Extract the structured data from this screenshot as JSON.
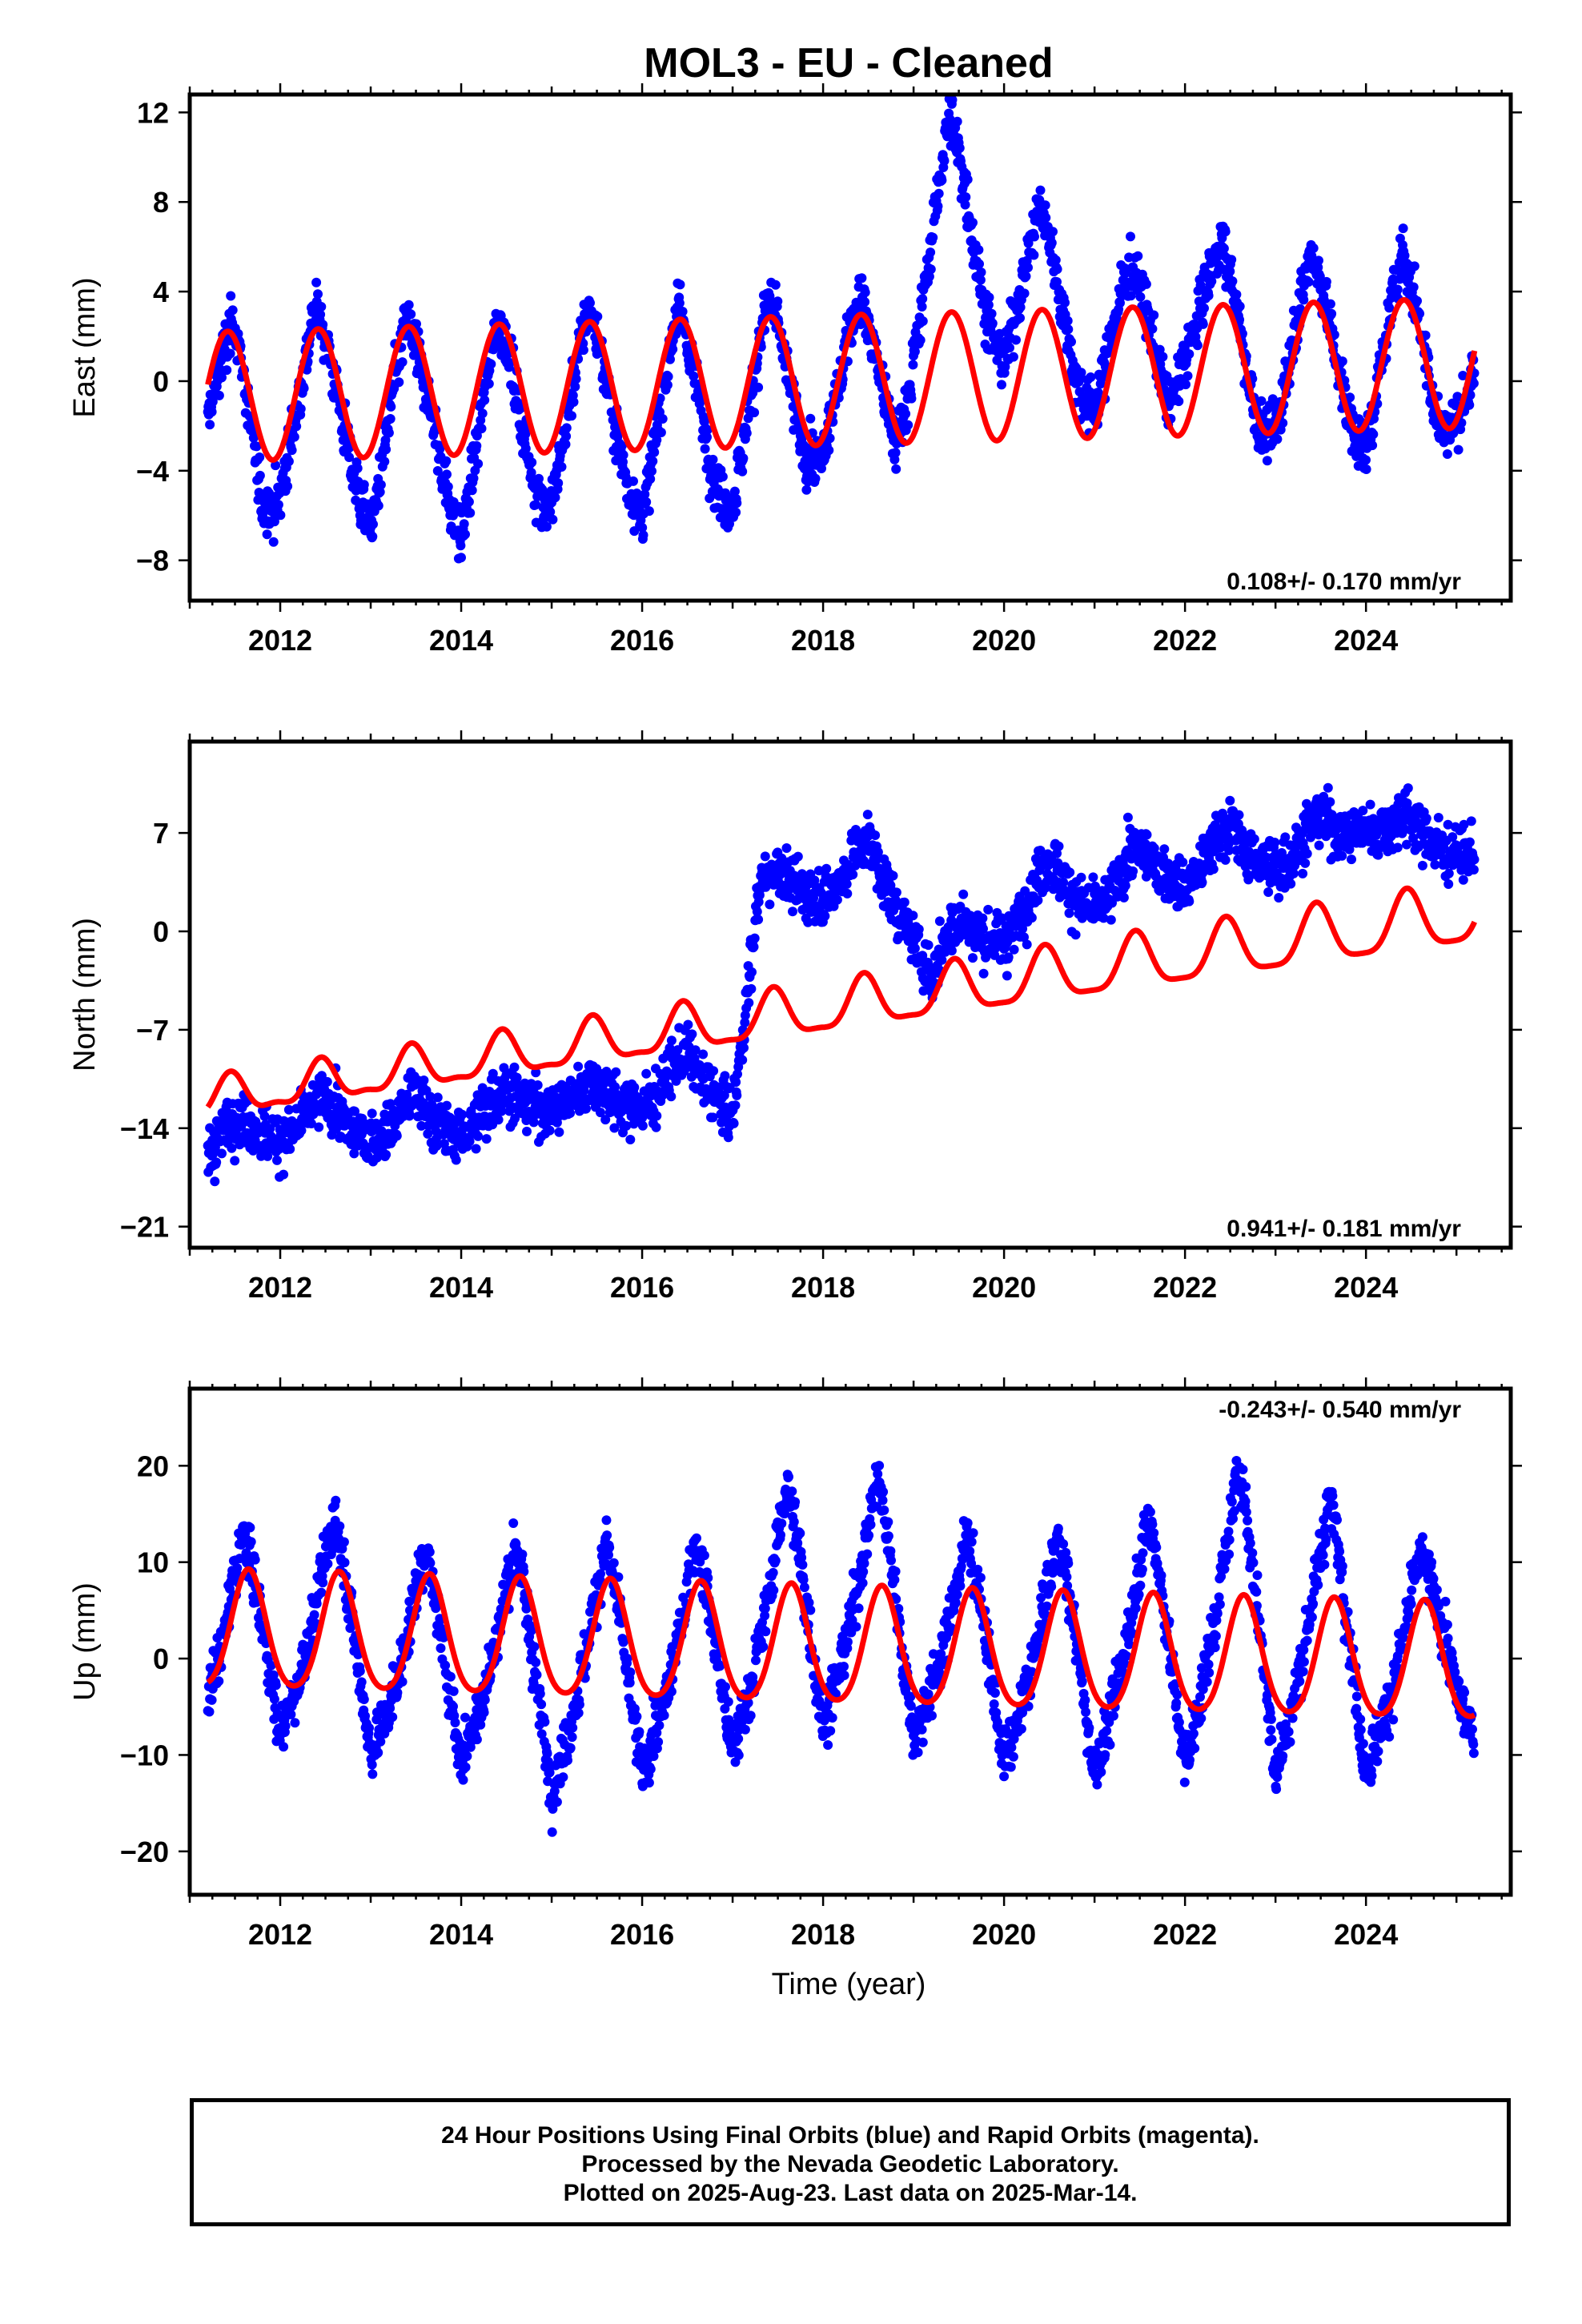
{
  "title": "MOL3  - EU - Cleaned",
  "xlabel": "Time (year)",
  "caption": [
    "24 Hour Positions Using Final Orbits (blue) and Rapid Orbits (magenta).",
    "Processed by the Nevada Geodetic Laboratory.",
    "Plotted on 2025-Aug-23. Last data on 2025-Mar-14."
  ],
  "colors": {
    "data": "#0000ff",
    "model": "#ff0000",
    "axes": "#000000"
  },
  "chart_data": [
    {
      "type": "scatter",
      "component": "East",
      "ylabel": "East (mm)",
      "xlim": [
        2011.0,
        2025.6
      ],
      "ylim": [
        -9.8,
        12.8
      ],
      "xticks": [
        2012,
        2014,
        2016,
        2018,
        2020,
        2022,
        2024
      ],
      "yticks": [
        -8,
        -4,
        0,
        4,
        8,
        12
      ],
      "rate_label": "0.108+/- 0.170 mm/yr",
      "rate_position": "bottom-right",
      "data_range": [
        2011.2,
        2025.2
      ],
      "series": [
        {
          "role": "data",
          "color": "#0000ff",
          "x": [
            2011.2,
            2011.5,
            2011.8,
            2012.0,
            2012.4,
            2012.8,
            2013.0,
            2013.4,
            2013.8,
            2014.0,
            2014.4,
            2014.8,
            2015.0,
            2015.4,
            2015.8,
            2016.0,
            2016.4,
            2016.8,
            2017.0,
            2017.4,
            2017.8,
            2018.0,
            2018.4,
            2018.8,
            2019.0,
            2019.4,
            2019.8,
            2020.0,
            2020.4,
            2020.8,
            2021.0,
            2021.4,
            2021.8,
            2022.0,
            2022.4,
            2022.8,
            2023.0,
            2023.4,
            2023.8,
            2024.0,
            2024.4,
            2024.8,
            2025.2
          ],
          "y": [
            -2.0,
            1.5,
            -4.5,
            -4.0,
            2.0,
            -3.0,
            -5.5,
            1.5,
            -3.0,
            -6.0,
            1.5,
            -3.5,
            -4.5,
            2.0,
            -3.0,
            -5.0,
            2.0,
            -3.5,
            -4.5,
            2.5,
            -2.5,
            -2.0,
            2.5,
            -2.0,
            2.0,
            10.5,
            4.0,
            2.0,
            6.5,
            1.0,
            0.0,
            4.0,
            0.0,
            2.0,
            5.0,
            -1.0,
            -1.0,
            4.5,
            -0.5,
            -2.0,
            4.5,
            -1.0,
            0.0
          ]
        },
        {
          "role": "model",
          "color": "#ff0000",
          "offset": -0.7,
          "rate": 0.108,
          "ref_year": 2011.2,
          "amplitude": 2.9,
          "amplitude_growth": 0.0,
          "phase_peak": 0.42,
          "semiannual_amplitude": 0.0,
          "steps": []
        }
      ]
    },
    {
      "type": "scatter",
      "component": "North",
      "ylabel": "North (mm)",
      "xlim": [
        2011.0,
        2025.6
      ],
      "ylim": [
        -22.5,
        13.5
      ],
      "xticks": [
        2012,
        2014,
        2016,
        2018,
        2020,
        2022,
        2024
      ],
      "yticks": [
        -21,
        -14,
        -7,
        0,
        7
      ],
      "rate_label": "0.941+/- 0.181 mm/yr",
      "rate_position": "bottom-right",
      "data_range": [
        2011.2,
        2025.2
      ],
      "series": [
        {
          "role": "data",
          "color": "#0000ff",
          "x": [
            2011.2,
            2011.6,
            2012.0,
            2012.5,
            2013.0,
            2013.5,
            2014.0,
            2014.5,
            2015.0,
            2015.5,
            2016.0,
            2016.5,
            2017.0,
            2017.3,
            2017.6,
            2018.0,
            2018.5,
            2019.0,
            2019.2,
            2019.5,
            2020.0,
            2020.5,
            2021.0,
            2021.5,
            2022.0,
            2022.5,
            2023.0,
            2023.5,
            2024.0,
            2024.5,
            2025.2
          ],
          "y": [
            -15.5,
            -13.5,
            -14.5,
            -12.5,
            -14.5,
            -12.5,
            -14.0,
            -12.0,
            -12.0,
            -11.5,
            -12.0,
            -9.5,
            -12.5,
            3.0,
            3.5,
            3.0,
            5.5,
            0.0,
            -3.0,
            0.0,
            0.0,
            4.0,
            2.0,
            5.0,
            4.0,
            6.5,
            5.0,
            7.0,
            8.0,
            7.0,
            6.0
          ]
        },
        {
          "role": "model",
          "color": "#ff0000",
          "offset": -12.0,
          "rate": 0.941,
          "ref_year": 2011.2,
          "amplitude": 1.3,
          "amplitude_growth": 0.06,
          "phase_peak": 0.45,
          "semiannual_amplitude": 0.5,
          "steps": []
        }
      ]
    },
    {
      "type": "scatter",
      "component": "Up",
      "ylabel": "Up (mm)",
      "xlim": [
        2011.0,
        2025.6
      ],
      "ylim": [
        -24.5,
        28.0
      ],
      "xticks": [
        2012,
        2014,
        2016,
        2018,
        2020,
        2022,
        2024
      ],
      "yticks": [
        -20,
        -10,
        0,
        10,
        20
      ],
      "rate_label": "-0.243+/- 0.540 mm/yr",
      "rate_position": "top-right",
      "data_range": [
        2011.2,
        2025.2
      ],
      "series": [
        {
          "role": "data",
          "color": "#0000ff",
          "x": [
            2011.2,
            2011.6,
            2012.0,
            2012.6,
            2013.0,
            2013.6,
            2014.0,
            2014.6,
            2015.0,
            2015.6,
            2016.0,
            2016.6,
            2017.0,
            2017.6,
            2018.0,
            2018.6,
            2019.0,
            2019.6,
            2020.0,
            2020.6,
            2021.0,
            2021.6,
            2022.0,
            2022.6,
            2023.0,
            2023.6,
            2024.0,
            2024.6,
            2025.2
          ],
          "y": [
            -2.0,
            10.0,
            -6.0,
            12.0,
            -8.0,
            8.0,
            -9.0,
            9.0,
            -12.0,
            9.0,
            -10.0,
            9.0,
            -8.0,
            15.0,
            -5.0,
            16.0,
            -6.0,
            10.0,
            -9.0,
            10.0,
            -10.0,
            12.0,
            -9.0,
            17.0,
            -10.0,
            14.0,
            -10.0,
            8.0,
            -6.0
          ]
        },
        {
          "role": "model",
          "color": "#ff0000",
          "offset": 2.6,
          "rate": -0.243,
          "ref_year": 2011.2,
          "amplitude": 6.0,
          "amplitude_growth": 0.0,
          "phase_peak": 0.65,
          "semiannual_amplitude": 0.8,
          "steps": []
        }
      ]
    }
  ]
}
